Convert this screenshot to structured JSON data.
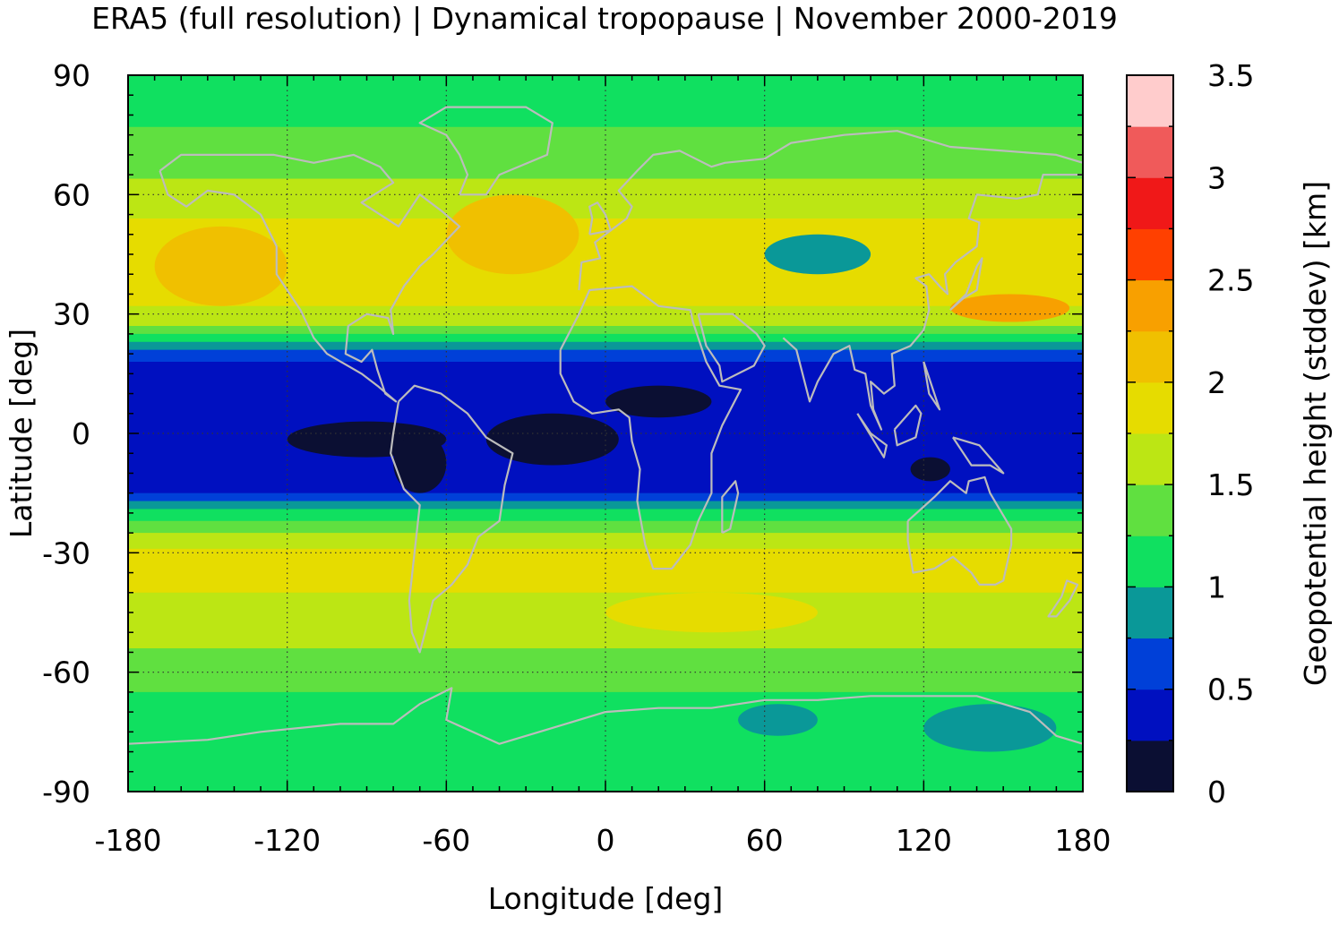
{
  "chart_data": {
    "type": "heatmap",
    "title": "ERA5 (full resolution) | Dynamical tropopause | November 2000-2019",
    "xlabel": "Longitude [deg]",
    "ylabel": "Latitude [deg]",
    "colorbar_label": "Geopotential height (stddev) [km]",
    "xlim": [
      -180,
      180
    ],
    "ylim": [
      -90,
      90
    ],
    "xticks": [
      -180,
      -120,
      -60,
      0,
      60,
      120,
      180
    ],
    "yticks": [
      90,
      60,
      30,
      0,
      -30,
      -60,
      -90
    ],
    "xtick_labels": [
      "-180",
      "-120",
      "-60",
      "0",
      "60",
      "120",
      "180"
    ],
    "ytick_labels": [
      "90",
      "60",
      "30",
      "0",
      "-30",
      "-60",
      "-90"
    ],
    "grid": true,
    "coastlines": true,
    "colorbar": {
      "min": 0,
      "max": 3.5,
      "ticks": [
        0,
        0.5,
        1,
        1.5,
        2,
        2.5,
        3,
        3.5
      ],
      "tick_labels": [
        "0",
        "0.5",
        "1",
        "1.5",
        "2",
        "2.5",
        "3",
        "3.5"
      ],
      "levels": [
        {
          "from": 0.0,
          "to": 0.25,
          "color": "#0b0f33"
        },
        {
          "from": 0.25,
          "to": 0.5,
          "color": "#0010c0"
        },
        {
          "from": 0.5,
          "to": 0.75,
          "color": "#0040d8"
        },
        {
          "from": 0.75,
          "to": 1.0,
          "color": "#0a9898"
        },
        {
          "from": 1.0,
          "to": 1.25,
          "color": "#10e060"
        },
        {
          "from": 1.25,
          "to": 1.5,
          "color": "#60e040"
        },
        {
          "from": 1.5,
          "to": 1.75,
          "color": "#bce614"
        },
        {
          "from": 1.75,
          "to": 2.0,
          "color": "#e6dc00"
        },
        {
          "from": 2.0,
          "to": 2.25,
          "color": "#f0c000"
        },
        {
          "from": 2.25,
          "to": 2.5,
          "color": "#f8a000"
        },
        {
          "from": 2.5,
          "to": 2.75,
          "color": "#ff4000"
        },
        {
          "from": 2.75,
          "to": 3.0,
          "color": "#f01818"
        },
        {
          "from": 3.0,
          "to": 3.25,
          "color": "#f05a5a"
        },
        {
          "from": 3.25,
          "to": 3.5,
          "color": "#ffcccc"
        }
      ]
    },
    "zonal_profile": [
      {
        "lat": 90,
        "value": 1.2
      },
      {
        "lat": 80,
        "value": 1.2
      },
      {
        "lat": 70,
        "value": 1.35
      },
      {
        "lat": 60,
        "value": 1.6
      },
      {
        "lat": 50,
        "value": 1.85
      },
      {
        "lat": 40,
        "value": 1.9
      },
      {
        "lat": 30,
        "value": 1.7
      },
      {
        "lat": 25,
        "value": 1.3
      },
      {
        "lat": 20,
        "value": 0.55
      },
      {
        "lat": 15,
        "value": 0.4
      },
      {
        "lat": 0,
        "value": 0.35
      },
      {
        "lat": -10,
        "value": 0.4
      },
      {
        "lat": -15,
        "value": 0.5
      },
      {
        "lat": -20,
        "value": 1.1
      },
      {
        "lat": -25,
        "value": 1.5
      },
      {
        "lat": -30,
        "value": 1.85
      },
      {
        "lat": -40,
        "value": 1.75
      },
      {
        "lat": -50,
        "value": 1.6
      },
      {
        "lat": -60,
        "value": 1.35
      },
      {
        "lat": -70,
        "value": 1.15
      },
      {
        "lat": -80,
        "value": 1.1
      },
      {
        "lat": -90,
        "value": 1.1
      }
    ],
    "regional_features": [
      {
        "lon": [
          -170,
          -120
        ],
        "lat": [
          32,
          52
        ],
        "value": 2.1
      },
      {
        "lon": [
          -60,
          -10
        ],
        "lat": [
          40,
          60
        ],
        "value": 2.1
      },
      {
        "lon": [
          130,
          175
        ],
        "lat": [
          28,
          35
        ],
        "value": 2.4
      },
      {
        "lon": [
          60,
          100
        ],
        "lat": [
          40,
          50
        ],
        "value": 0.9
      },
      {
        "lon": [
          -120,
          -60
        ],
        "lat": [
          -6,
          3
        ],
        "value": 0.2
      },
      {
        "lon": [
          0,
          40
        ],
        "lat": [
          4,
          12
        ],
        "value": 0.2
      },
      {
        "lon": [
          -45,
          5
        ],
        "lat": [
          -8,
          5
        ],
        "value": 0.2
      },
      {
        "lon": [
          115,
          130
        ],
        "lat": [
          -12,
          -6
        ],
        "value": 0.2
      },
      {
        "lon": [
          -80,
          -60
        ],
        "lat": [
          -15,
          0
        ],
        "value": 0.2
      },
      {
        "lon": [
          0,
          80
        ],
        "lat": [
          -40,
          -50
        ],
        "value": 1.8
      },
      {
        "lon": [
          120,
          170
        ],
        "lat": [
          -68,
          -80
        ],
        "value": 0.9
      },
      {
        "lon": [
          50,
          80
        ],
        "lat": [
          -68,
          -76
        ],
        "value": 0.9
      }
    ]
  }
}
